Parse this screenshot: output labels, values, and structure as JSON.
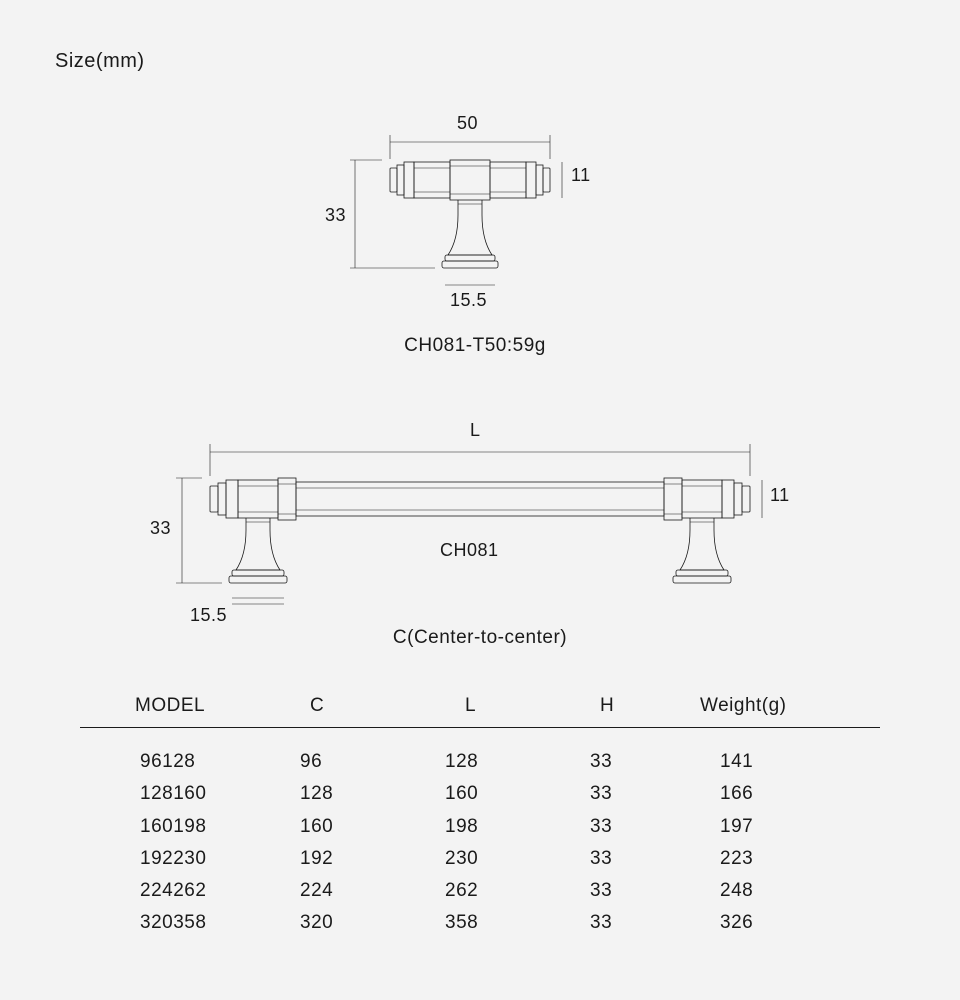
{
  "title": "Size(mm)",
  "diagram1": {
    "width_label": "50",
    "bar_height_label": "11",
    "total_height_label": "33",
    "base_width_label": "15.5",
    "caption": "CH081-T50:59g"
  },
  "diagram2": {
    "length_label": "L",
    "bar_height_label": "11",
    "total_height_label": "33",
    "base_width_label": "15.5",
    "center_label": "CH081",
    "caption": "C(Center-to-center)"
  },
  "table": {
    "headers": [
      "MODEL",
      "C",
      "L",
      "H",
      "Weight(g)"
    ],
    "rows": [
      [
        "96128",
        "96",
        "128",
        "33",
        "141"
      ],
      [
        "128160",
        "128",
        "160",
        "33",
        "166"
      ],
      [
        "160198",
        "160",
        "198",
        "33",
        "197"
      ],
      [
        "192230",
        "192",
        "230",
        "33",
        "223"
      ],
      [
        "224262",
        "224",
        "262",
        "33",
        "248"
      ],
      [
        "320358",
        "320",
        "358",
        "33",
        "326"
      ]
    ]
  },
  "style": {
    "bg": "#f3f3f3",
    "fg": "#1a1a1a",
    "font": "Helvetica Neue",
    "title_fontsize": 20,
    "label_fontsize": 18,
    "table_fontsize": 19,
    "stroke_width": 0.8
  }
}
